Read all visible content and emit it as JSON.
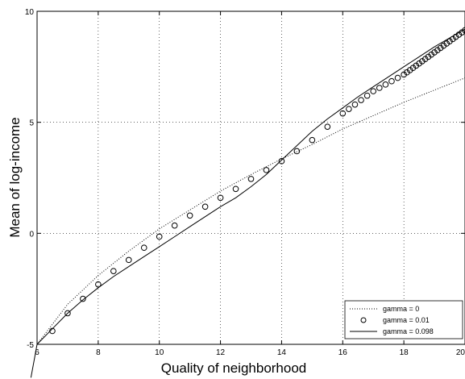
{
  "chart_data": {
    "type": "line",
    "title": "",
    "xlabel": "Quality of neighborhood",
    "ylabel": "Mean of log-income",
    "xlim": [
      6,
      20
    ],
    "ylim": [
      -5,
      10
    ],
    "xticks": [
      6,
      8,
      10,
      12,
      14,
      16,
      18,
      20
    ],
    "yticks": [
      -5,
      0,
      5,
      10
    ],
    "grid": true,
    "legend_position": "bottom-right",
    "series": [
      {
        "name": "gamma = 0",
        "style": "dotted",
        "x": [
          6,
          7,
          8,
          9,
          10,
          11,
          12,
          13,
          14,
          15,
          16,
          17,
          18,
          19,
          20
        ],
        "y": [
          -5.0,
          -3.2,
          -1.9,
          -0.8,
          0.2,
          1.05,
          1.9,
          2.65,
          3.35,
          4.0,
          4.7,
          5.3,
          5.9,
          6.45,
          7.0
        ]
      },
      {
        "name": "gamma = 0.01",
        "style": "markers",
        "marker": "open-circle",
        "x": [
          6.5,
          7.0,
          7.5,
          8.0,
          8.5,
          9.0,
          9.5,
          10.0,
          10.5,
          11.0,
          11.5,
          12.0,
          12.5,
          13.0,
          13.5,
          14.0,
          14.5,
          15.0,
          15.5,
          16.0,
          16.2,
          16.4,
          16.6,
          16.8,
          17.0,
          17.2,
          17.4,
          17.6,
          17.8,
          18.0,
          18.1,
          18.2,
          18.3,
          18.4,
          18.5,
          18.6,
          18.7,
          18.8,
          18.9,
          19.0,
          19.1,
          19.2,
          19.3,
          19.4,
          19.5,
          19.6,
          19.7,
          19.8,
          19.9,
          20.0
        ],
        "y": [
          -4.4,
          -3.6,
          -2.95,
          -2.3,
          -1.7,
          -1.2,
          -0.65,
          -0.15,
          0.35,
          0.8,
          1.2,
          1.6,
          2.0,
          2.45,
          2.85,
          3.25,
          3.7,
          4.2,
          4.8,
          5.4,
          5.6,
          5.8,
          6.0,
          6.2,
          6.4,
          6.55,
          6.7,
          6.85,
          7.0,
          7.15,
          7.25,
          7.35,
          7.45,
          7.55,
          7.65,
          7.75,
          7.85,
          7.95,
          8.05,
          8.15,
          8.25,
          8.35,
          8.45,
          8.55,
          8.65,
          8.75,
          8.85,
          8.95,
          9.05,
          9.15
        ]
      },
      {
        "name": "gamma = 0.098",
        "style": "solid",
        "x": [
          5.8,
          6.0,
          6.5,
          7.0,
          7.5,
          8.0,
          8.5,
          9.0,
          9.5,
          10.0,
          10.5,
          11.0,
          11.5,
          12.0,
          12.5,
          13.0,
          13.5,
          14.0,
          14.5,
          15.0,
          15.5,
          16.0,
          16.5,
          17.0,
          17.5,
          18.0,
          18.5,
          19.0,
          19.5,
          20.0
        ],
        "y": [
          -6.5,
          -5.0,
          -4.3,
          -3.6,
          -3.0,
          -2.45,
          -1.95,
          -1.5,
          -1.05,
          -0.6,
          -0.15,
          0.3,
          0.75,
          1.2,
          1.6,
          2.1,
          2.65,
          3.3,
          3.95,
          4.6,
          5.15,
          5.65,
          6.15,
          6.6,
          7.05,
          7.5,
          7.95,
          8.4,
          8.8,
          9.2
        ]
      }
    ]
  }
}
